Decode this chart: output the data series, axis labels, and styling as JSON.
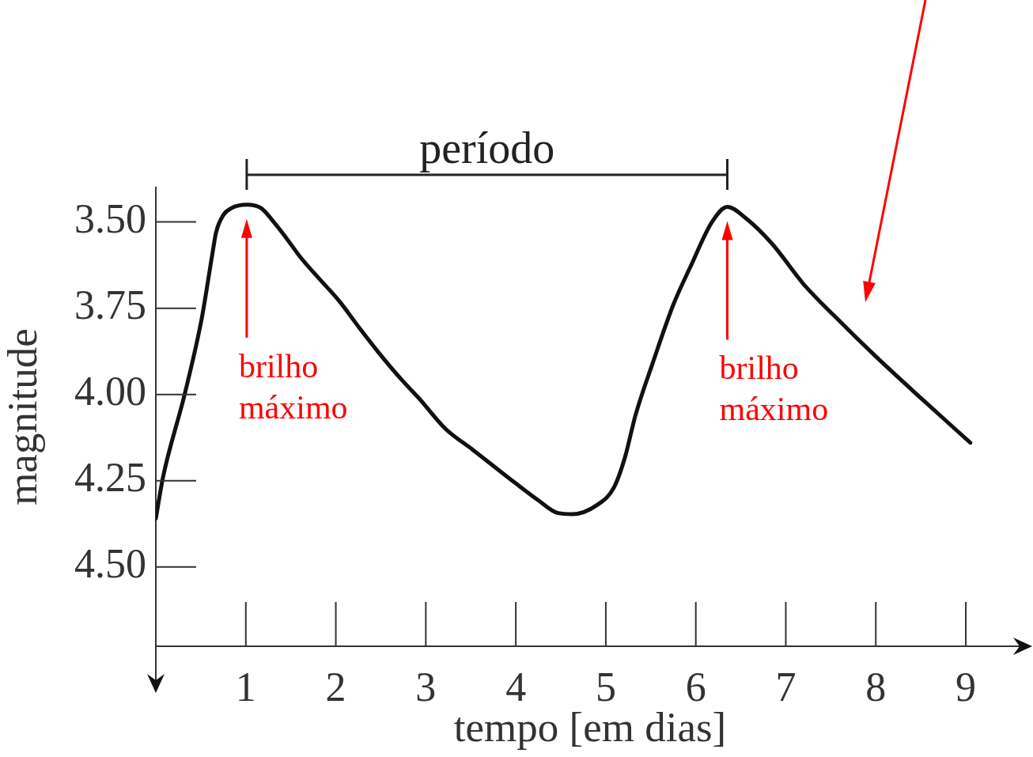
{
  "chart_data": {
    "type": "line",
    "xlabel": "tempo [em dias]",
    "ylabel": "magnitude",
    "x": [
      0,
      0.08,
      0.32,
      0.51,
      0.63,
      0.67,
      0.75,
      0.84,
      1.01,
      1.17,
      1.31,
      1.46,
      1.6,
      1.8,
      2.04,
      2.27,
      2.48,
      2.74,
      2.92,
      3.22,
      3.52,
      3.99,
      4.25,
      4.47,
      4.63,
      4.9,
      5.09,
      5.21,
      5.33,
      5.52,
      5.75,
      5.94,
      6.18,
      6.35,
      6.56,
      6.85,
      7.2,
      7.53,
      8.0,
      8.52,
      9.05
    ],
    "values": [
      4.36,
      4.24,
      4.0,
      3.78,
      3.59,
      3.53,
      3.48,
      3.46,
      3.45,
      3.46,
      3.5,
      3.55,
      3.6,
      3.66,
      3.73,
      3.81,
      3.88,
      3.96,
      4.01,
      4.1,
      4.16,
      4.256,
      4.307,
      4.344,
      4.347,
      4.321,
      4.27,
      4.185,
      4.06,
      3.91,
      3.74,
      3.63,
      3.5,
      3.456,
      3.49,
      3.564,
      3.681,
      3.77,
      3.89,
      4.015,
      4.14
    ],
    "color": "#111111",
    "xlim": [
      0,
      9.65
    ],
    "xticks": [
      1,
      2,
      3,
      4,
      5,
      6,
      7,
      8,
      9
    ],
    "ylim": [
      4.73,
      3.4
    ],
    "yticks": [
      {
        "value": 3.5,
        "label": "3.50"
      },
      {
        "value": 3.75,
        "label": "3.75"
      },
      {
        "value": 4,
        "label": "4.00"
      },
      {
        "value": 4.25,
        "label": "4.25"
      },
      {
        "value": 4.5,
        "label": "4.50"
      }
    ],
    "annotations": [
      "período",
      "brilho máximo",
      "brilho máximo"
    ]
  }
}
